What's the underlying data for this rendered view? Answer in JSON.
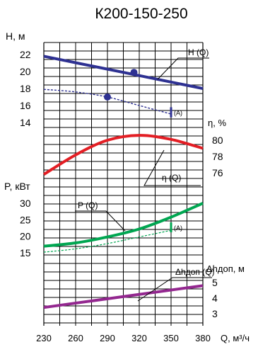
{
  "chart_data": {
    "type": "line",
    "title": "К200-150-250",
    "x": {
      "label": "Q, м³/ч",
      "range": [
        230,
        380
      ],
      "ticks": [
        230,
        260,
        290,
        320,
        350,
        380
      ],
      "grid": true
    },
    "panels": {
      "head": {
        "label": "H, м",
        "range": [
          12,
          24
        ],
        "ticks": [
          14,
          16,
          18,
          20,
          22
        ],
        "series": [
          {
            "name": "H (Q)",
            "color": "#2e3192",
            "style": "solid",
            "x": [
              230,
              380
            ],
            "y": [
              21.8,
              18.0
            ]
          },
          {
            "name": "(A)",
            "color": "#2e3192",
            "style": "dashed",
            "x": [
              230,
              260,
              290,
              320,
              350
            ],
            "y": [
              17.9,
              17.6,
              17.0,
              16.0,
              15.0
            ]
          }
        ],
        "markers": [
          {
            "x": 315,
            "y": 19.9,
            "color": "#2e3192"
          },
          {
            "x": 290,
            "y": 17.0,
            "color": "#2e3192"
          }
        ],
        "range_bar": {
          "x": 350,
          "y": [
            14.6,
            15.8
          ],
          "label": "(A)",
          "color": "#2e3192"
        }
      },
      "efficiency": {
        "label": "η, %",
        "range": [
          74,
          82
        ],
        "ticks": [
          76,
          78,
          80
        ],
        "series": [
          {
            "name": "η (Q)",
            "color": "#e31e24",
            "style": "solid",
            "x": [
              230,
              260,
              290,
              320,
              350,
              380
            ],
            "y": [
              75.8,
              78.2,
              80.0,
              80.6,
              80.1,
              79.0
            ]
          }
        ]
      },
      "power": {
        "label": "P, кВт",
        "range": [
          10,
          34
        ],
        "ticks": [
          15,
          20,
          25,
          30
        ],
        "series": [
          {
            "name": "P (Q)",
            "color": "#00a651",
            "style": "solid",
            "x": [
              230,
              260,
              290,
              320,
              350,
              380
            ],
            "y": [
              17.0,
              18.0,
              19.8,
              22.2,
              25.8,
              30.0
            ]
          },
          {
            "name": "(A)",
            "color": "#00a651",
            "style": "dashed",
            "x": [
              230,
              260,
              290,
              320,
              350
            ],
            "y": [
              15.2,
              16.2,
              17.8,
              19.8,
              21.8
            ]
          }
        ],
        "range_bar": {
          "x": 350,
          "y": [
            21.2,
            24.2
          ],
          "label": "(A)",
          "color": "#00a651"
        }
      },
      "npsh": {
        "label": "Δhдоп, м",
        "range": [
          2,
          6
        ],
        "ticks": [
          3,
          4,
          5
        ],
        "series": [
          {
            "name": "Δhдоп (Q)",
            "color": "#93278f",
            "style": "solid",
            "x": [
              230,
              380
            ],
            "y": [
              3.4,
              4.8
            ]
          }
        ]
      }
    }
  }
}
